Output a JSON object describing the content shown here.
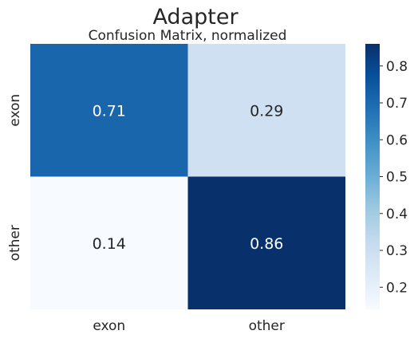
{
  "chart_data": {
    "type": "heatmap",
    "title": "Adapter",
    "subtitle": "Confusion Matrix, normalized",
    "xlabel": "",
    "ylabel": "",
    "x_categories": [
      "exon",
      "other"
    ],
    "y_categories": [
      "exon",
      "other"
    ],
    "values": [
      [
        0.71,
        0.29
      ],
      [
        0.14,
        0.86
      ]
    ],
    "value_labels": [
      [
        "0.71",
        "0.29"
      ],
      [
        "0.14",
        "0.86"
      ]
    ],
    "colormap": "Blues",
    "vmin": 0.14,
    "vmax": 0.86,
    "colorbar_ticks": [
      0.2,
      0.3,
      0.4,
      0.5,
      0.6,
      0.7,
      0.8
    ],
    "colorbar_tick_labels": [
      "0.2",
      "0.3",
      "0.4",
      "0.5",
      "0.6",
      "0.7",
      "0.8"
    ],
    "grid": false,
    "legend": "colorbar-right"
  }
}
